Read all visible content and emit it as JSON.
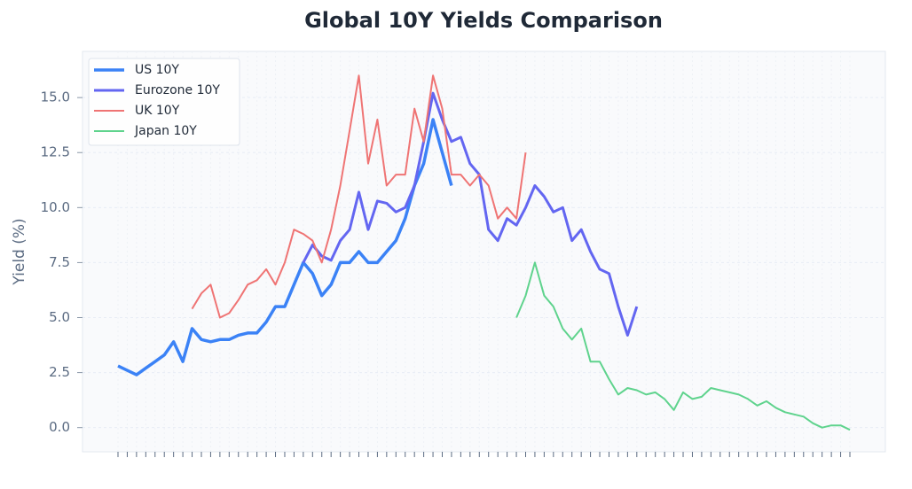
{
  "chart_data": {
    "type": "line",
    "title": "Global 10Y Yields Comparison",
    "y_label": "Yield (%)",
    "categories": [
      null,
      null,
      null,
      null,
      null,
      null,
      null,
      null,
      null,
      null,
      null,
      null,
      null,
      null,
      null,
      null,
      null,
      null,
      null,
      null,
      null,
      null,
      null,
      null,
      null,
      null,
      null,
      null,
      null,
      null,
      null,
      null,
      null,
      null,
      null,
      null,
      null,
      null,
      null,
      null,
      null,
      null,
      null,
      null,
      null,
      null,
      null,
      null,
      null,
      null,
      null,
      null,
      null,
      null,
      null,
      null,
      null,
      null,
      null,
      null,
      null,
      null,
      null,
      null,
      null,
      null,
      null,
      null,
      null,
      null,
      null,
      null,
      null,
      null,
      null,
      null,
      null,
      null,
      null,
      null
    ],
    "ylim": [
      -1.1,
      17.1
    ],
    "yticks": [
      {
        "value": 0,
        "label": "0.0"
      },
      2.5,
      {
        "value": 5,
        "label": "5.0"
      },
      7.5,
      {
        "value": 10,
        "label": "10.0"
      },
      12.5,
      {
        "value": 15,
        "label": "15.0"
      }
    ],
    "grid": true,
    "legend": "upper left",
    "series": [
      {
        "name": "US 10Y",
        "color": "#3b82f6",
        "width": 3.5,
        "values": [
          2.8,
          2.6,
          2.4,
          2.7,
          3.0,
          3.3,
          3.9,
          3.0,
          4.5,
          4.0,
          3.9,
          4.0,
          4.0,
          4.2,
          4.3,
          4.3,
          4.8,
          5.5,
          5.5,
          6.5,
          7.5,
          7.0,
          6.0,
          6.5,
          7.5,
          7.5,
          8.0,
          7.5,
          7.5,
          8.0,
          8.5,
          9.5,
          11.0,
          12.0,
          14.0,
          12.5,
          11.0,
          null,
          null,
          null,
          null,
          null,
          null,
          null,
          null,
          null,
          null,
          null,
          null,
          null,
          null,
          null,
          null,
          null,
          null,
          null,
          null,
          null,
          null,
          null,
          null,
          null,
          null,
          null,
          null,
          null,
          null,
          null,
          null,
          null,
          null,
          null,
          null,
          null,
          null,
          null,
          null,
          null,
          null,
          null
        ]
      },
      {
        "name": "Eurozone 10Y",
        "color": "#6366f1",
        "width": 3,
        "values": [
          null,
          null,
          null,
          null,
          null,
          null,
          null,
          null,
          null,
          null,
          null,
          null,
          null,
          null,
          null,
          null,
          null,
          null,
          null,
          null,
          7.5,
          8.3,
          7.8,
          7.6,
          8.5,
          9.0,
          10.7,
          9.0,
          10.3,
          10.2,
          9.8,
          10.0,
          11.0,
          13.0,
          15.2,
          14.0,
          13.0,
          13.2,
          12.0,
          11.5,
          9.0,
          8.5,
          9.5,
          9.2,
          10.0,
          11.0,
          10.5,
          9.8,
          10.0,
          8.5,
          9.0,
          8.0,
          7.2,
          7.0,
          5.5,
          4.2,
          5.5,
          null,
          null,
          null,
          null,
          null,
          null,
          null,
          null,
          null,
          null,
          null,
          null,
          null,
          null,
          null,
          null,
          null,
          null,
          null,
          null,
          null,
          null,
          null
        ]
      },
      {
        "name": "UK 10Y",
        "color": "#ef7474",
        "width": 2,
        "values": [
          null,
          null,
          null,
          null,
          null,
          null,
          null,
          null,
          5.4,
          6.1,
          6.5,
          5.0,
          5.2,
          5.8,
          6.5,
          6.7,
          7.2,
          6.5,
          7.5,
          9.0,
          8.8,
          8.5,
          7.5,
          9.0,
          11.0,
          13.5,
          16.0,
          12.0,
          14.0,
          11.0,
          11.5,
          11.5,
          14.5,
          13.0,
          16.0,
          14.5,
          11.5,
          11.5,
          11.0,
          11.5,
          11.0,
          9.5,
          10.0,
          9.5,
          12.5,
          null,
          null,
          null,
          null,
          null,
          null,
          null,
          null,
          null,
          null,
          null,
          null,
          null,
          null,
          null,
          null,
          null,
          null,
          null,
          null,
          null,
          null,
          null,
          null,
          null,
          null,
          null,
          null,
          null,
          null,
          null,
          null,
          null,
          null,
          null
        ]
      },
      {
        "name": "Japan 10Y",
        "color": "#5fd38d",
        "width": 2,
        "values": [
          null,
          null,
          null,
          null,
          null,
          null,
          null,
          null,
          null,
          null,
          null,
          null,
          null,
          null,
          null,
          null,
          null,
          null,
          null,
          null,
          null,
          null,
          null,
          null,
          null,
          null,
          null,
          null,
          null,
          null,
          null,
          null,
          null,
          null,
          null,
          null,
          null,
          null,
          null,
          null,
          null,
          null,
          null,
          5.0,
          6.0,
          7.5,
          6.0,
          5.5,
          4.5,
          4.0,
          4.5,
          3.0,
          3.0,
          2.2,
          1.5,
          1.8,
          1.7,
          1.5,
          1.6,
          1.3,
          0.8,
          1.6,
          1.3,
          1.4,
          1.8,
          1.7,
          1.6,
          1.5,
          1.3,
          1.0,
          1.2,
          0.9,
          0.7,
          0.6,
          0.5,
          0.2,
          0.0,
          0.1,
          0.1,
          -0.1
        ]
      }
    ]
  }
}
